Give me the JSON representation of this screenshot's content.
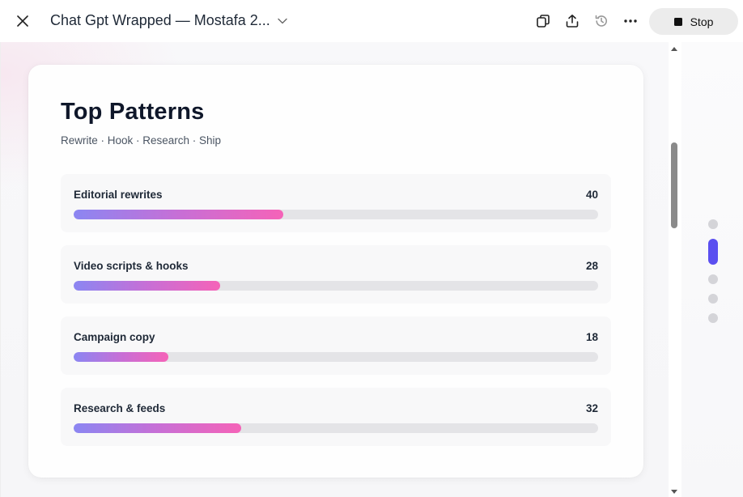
{
  "window": {
    "title": "Chat Gpt Wrapped — Mostafa 2...",
    "stop_label": "Stop"
  },
  "card": {
    "title": "Top Patterns",
    "subtitle": "Rewrite · Hook · Research · Ship",
    "rows": [
      {
        "label": "Editorial rewrites",
        "value": "40",
        "fill_fraction": 0.4
      },
      {
        "label": "Video scripts & hooks",
        "value": "28",
        "fill_fraction": 0.28
      },
      {
        "label": "Campaign copy",
        "value": "18",
        "fill_fraction": 0.18
      },
      {
        "label": "Research & feeds",
        "value": "32",
        "fill_fraction": 0.32
      }
    ]
  },
  "pager": {
    "total": 5,
    "active_index": 1
  },
  "colors": {
    "accent": "#5b4ff0",
    "bar_start": "#8b86f2",
    "bar_end": "#f563b8",
    "track": "#e4e4e7"
  },
  "icons": [
    "close-icon",
    "chevron-down-icon",
    "copy-icon",
    "share-icon",
    "history-icon",
    "more-icon",
    "stop-icon"
  ]
}
